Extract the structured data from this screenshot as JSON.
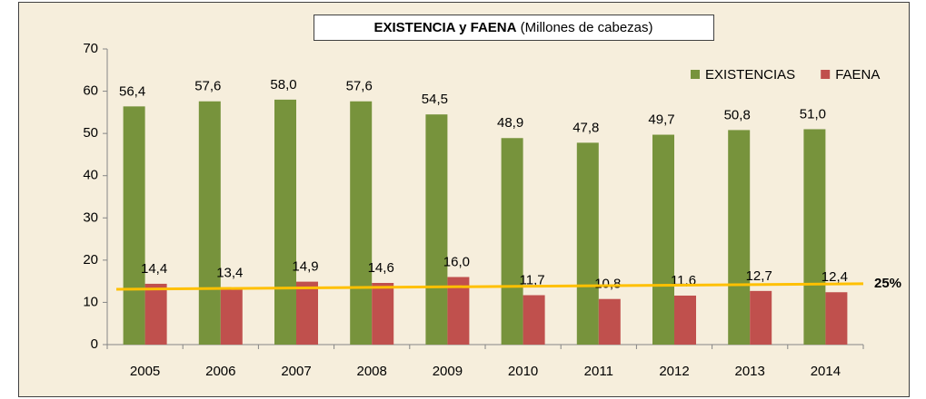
{
  "chart_data": {
    "type": "bar",
    "title": "EXISTENCIA y FAENA",
    "subtitle": "(Millones de cabezas)",
    "categories": [
      "2005",
      "2006",
      "2007",
      "2008",
      "2009",
      "2010",
      "2011",
      "2012",
      "2013",
      "2014"
    ],
    "series": [
      {
        "name": "EXISTENCIAS",
        "color": "#77933c",
        "values": [
          56.4,
          57.6,
          58.0,
          57.6,
          54.5,
          48.9,
          47.8,
          49.7,
          50.8,
          51.0
        ],
        "value_labels": [
          "56,4",
          "57,6",
          "58,0",
          "57,6",
          "54,5",
          "48,9",
          "47,8",
          "49,7",
          "50,8",
          "51,0"
        ]
      },
      {
        "name": "FAENA",
        "color": "#c0504d",
        "values": [
          14.4,
          13.4,
          14.9,
          14.6,
          16.0,
          11.7,
          10.8,
          11.6,
          12.7,
          12.4
        ],
        "value_labels": [
          "14,4",
          "13,4",
          "14,9",
          "14,6",
          "16,0",
          "11,7",
          "10,8",
          "11,6",
          "12,7",
          "12,4"
        ]
      }
    ],
    "trend_line": {
      "label": "25%",
      "values": [
        13.1,
        14.4
      ],
      "color": "#ffc000"
    },
    "ylim": [
      0,
      70
    ],
    "yticks": [
      0,
      10,
      20,
      30,
      40,
      50,
      60,
      70
    ],
    "grid": false,
    "legend": "top-right"
  }
}
